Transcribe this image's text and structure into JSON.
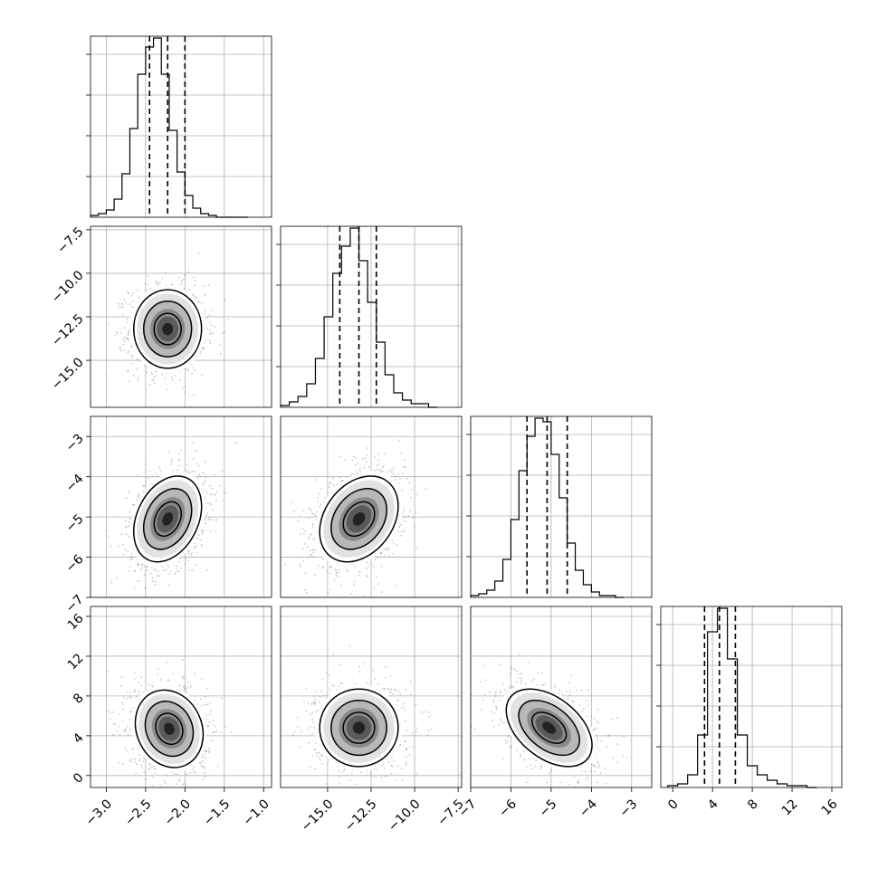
{
  "chart_data": {
    "type": "corner",
    "grid": true,
    "parameters": [
      {
        "range": [
          -3.2,
          -0.9
        ],
        "ticks": [
          -3.0,
          -2.5,
          -2.0,
          -1.5,
          -1.0
        ],
        "tick_labels": [
          "−3.0",
          "−2.5",
          "−2.0",
          "−1.5",
          "−1.0"
        ],
        "quantiles": [
          -2.45,
          -2.22,
          -2.0
        ],
        "hist": {
          "bin_edges": [
            -3.2,
            -3.1,
            -3.0,
            -2.9,
            -2.8,
            -2.7,
            -2.6,
            -2.5,
            -2.4,
            -2.3,
            -2.2,
            -2.1,
            -2.0,
            -1.9,
            -1.8,
            -1.7,
            -1.6,
            -1.5,
            -1.4,
            -1.3,
            -1.2
          ],
          "counts": [
            1,
            2,
            4,
            10,
            24,
            49,
            79,
            94,
            99,
            79,
            48,
            25,
            12,
            5,
            2,
            1,
            0,
            0,
            0,
            0
          ]
        }
      },
      {
        "range": [
          -17.7,
          -7.3
        ],
        "ticks": [
          -15.0,
          -12.5,
          -10.0,
          -7.5
        ],
        "tick_labels": [
          "−15.0",
          "−12.5",
          "−10.0",
          "−7.5"
        ],
        "quantiles": [
          -14.3,
          -13.2,
          -12.2
        ],
        "hist": {
          "bin_edges": [
            -17.7,
            -17.2,
            -16.7,
            -16.2,
            -15.7,
            -15.2,
            -14.7,
            -14.2,
            -13.7,
            -13.2,
            -12.7,
            -12.2,
            -11.7,
            -11.2,
            -10.7,
            -10.2,
            -9.7,
            -9.2,
            -8.7
          ],
          "counts": [
            1,
            3,
            6,
            13,
            27,
            50,
            74,
            89,
            99,
            81,
            58,
            36,
            18,
            8,
            4,
            2,
            2,
            0
          ]
        }
      },
      {
        "range": [
          -7,
          -2.5
        ],
        "ticks": [
          -7,
          -6,
          -5,
          -4,
          -3
        ],
        "tick_labels": [
          "−7",
          "−6",
          "−5",
          "−4",
          "−3"
        ],
        "quantiles": [
          -5.6,
          -5.1,
          -4.6
        ],
        "hist": {
          "bin_edges": [
            -7.0,
            -6.8,
            -6.6,
            -6.4,
            -6.2,
            -6.0,
            -5.8,
            -5.6,
            -5.4,
            -5.2,
            -5.0,
            -4.8,
            -4.6,
            -4.4,
            -4.2,
            -4.0,
            -3.8,
            -3.6,
            -3.4,
            -3.2
          ],
          "counts": [
            1,
            2,
            4,
            9,
            21,
            43,
            70,
            89,
            99,
            97,
            79,
            55,
            30,
            15,
            7,
            3,
            1,
            1,
            0
          ]
        }
      },
      {
        "range": [
          -1.2,
          17
        ],
        "ticks": [
          0,
          4,
          8,
          12,
          16
        ],
        "tick_labels": [
          "0",
          "4",
          "8",
          "12",
          "16"
        ],
        "quantiles": [
          3.2,
          4.7,
          6.3
        ],
        "hist": {
          "bin_edges": [
            -0.5,
            0.5,
            1.5,
            2.5,
            3.5,
            4.5,
            5.5,
            6.5,
            7.5,
            8.5,
            9.5,
            10.5,
            11.5,
            12.5,
            13.5,
            14.5
          ],
          "counts": [
            1,
            2,
            7,
            29,
            86,
            99,
            71,
            29,
            12,
            7,
            4,
            2,
            1,
            1,
            0
          ]
        }
      }
    ],
    "pairs": [
      {
        "row": 1,
        "col": 0,
        "center": [
          -2.22,
          -13.2
        ],
        "sigma": [
          0.21,
          1.1
        ],
        "rho": 0.0
      },
      {
        "row": 2,
        "col": 0,
        "center": [
          -2.22,
          -5.05
        ],
        "sigma": [
          0.21,
          0.52
        ],
        "rho": 0.3
      },
      {
        "row": 2,
        "col": 1,
        "center": [
          -13.2,
          -5.05
        ],
        "sigma": [
          1.1,
          0.52
        ],
        "rho": 0.3
      },
      {
        "row": 3,
        "col": 0,
        "center": [
          -2.2,
          4.7
        ],
        "sigma": [
          0.21,
          1.9
        ],
        "rho": -0.15
      },
      {
        "row": 3,
        "col": 1,
        "center": [
          -13.2,
          4.8
        ],
        "sigma": [
          1.1,
          1.9
        ],
        "rho": 0.0
      },
      {
        "row": 3,
        "col": 2,
        "center": [
          -5.05,
          4.8
        ],
        "sigma": [
          0.52,
          1.9
        ],
        "rho": -0.45
      }
    ]
  }
}
